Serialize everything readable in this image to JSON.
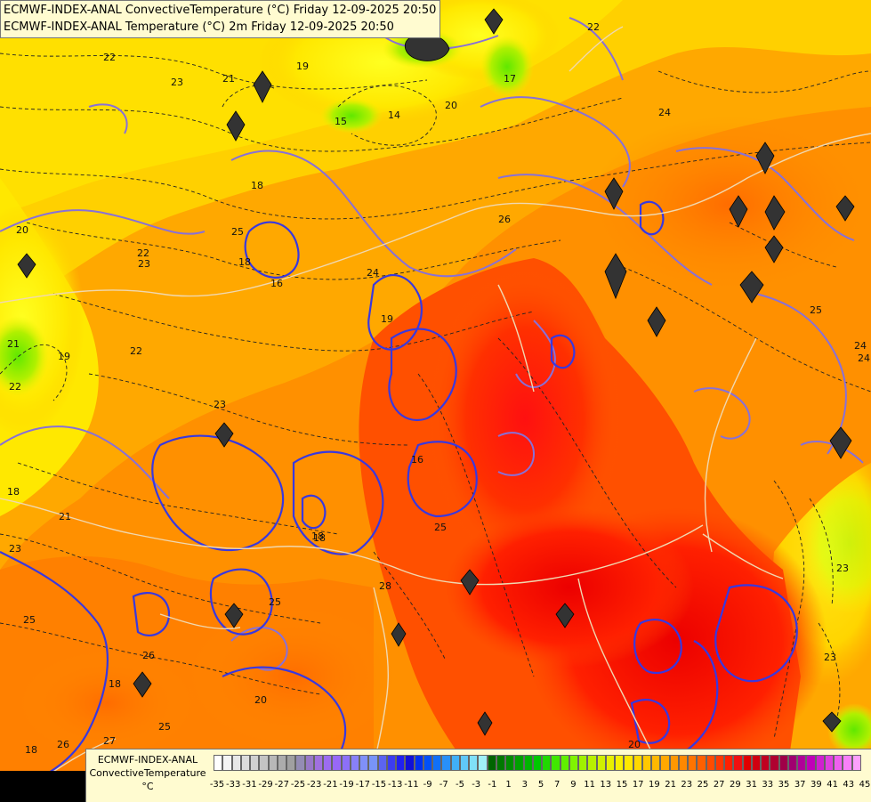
{
  "header": {
    "line1": "ECMWF-INDEX-ANAL ConvectiveTemperature (°C) Friday 12-09-2025 20:50",
    "line2": "ECMWF-INDEX-ANAL Temperature (°C) 2m Friday 12-09-2025 20:50"
  },
  "legend": {
    "source": "ECMWF-INDEX-ANAL",
    "parameter": "ConvectiveTemperature",
    "unit": "°C",
    "ticks": [
      "-35",
      "-33",
      "-31",
      "-29",
      "-27",
      "-25",
      "-23",
      "-21",
      "-19",
      "-17",
      "-15",
      "-13",
      "-11",
      "-9",
      "-7",
      "-5",
      "-3",
      "-1",
      "1",
      "3",
      "5",
      "7",
      "9",
      "11",
      "13",
      "15",
      "17",
      "19",
      "21",
      "23",
      "25",
      "27",
      "29",
      "31",
      "33",
      "35",
      "37",
      "39",
      "41",
      "43",
      "45"
    ],
    "colors": [
      "#ffffff",
      "#f4f4f4",
      "#e8e8e8",
      "#dcdcdc",
      "#d0d0d0",
      "#c4c4c4",
      "#b8b8b8",
      "#acacac",
      "#a0a0a0",
      "#948cb4",
      "#9878c8",
      "#a070e0",
      "#9c6cf0",
      "#9868f8",
      "#8c70f8",
      "#8880f8",
      "#8090f8",
      "#7894f8",
      "#5c64f0",
      "#3c3cf0",
      "#2020f0",
      "#1010d8",
      "#0030f0",
      "#0050f8",
      "#1070f8",
      "#2890f8",
      "#40b0f8",
      "#60c8f8",
      "#80e0f8",
      "#a0f0f8",
      "#006400",
      "#007800",
      "#008c00",
      "#00a000",
      "#00b400",
      "#00c800",
      "#20d800",
      "#40e800",
      "#60f000",
      "#80f400",
      "#a0f000",
      "#b8f000",
      "#d0f000",
      "#e8f000",
      "#f8f000",
      "#ffe800",
      "#ffd800",
      "#ffc800",
      "#ffb800",
      "#ffa800",
      "#ff9800",
      "#ff8800",
      "#ff7400",
      "#ff6000",
      "#ff4c00",
      "#ff3800",
      "#ff2000",
      "#f01010",
      "#e00000",
      "#d00010",
      "#c00020",
      "#b00030",
      "#a00048",
      "#a00070",
      "#b00098",
      "#c000b8",
      "#d020d0",
      "#e040e0",
      "#f060f0",
      "#f880f8",
      "#fca0fc"
    ]
  },
  "map": {
    "contour_labels": [
      "22",
      "23",
      "21",
      "19",
      "20",
      "15",
      "14",
      "17",
      "22",
      "24",
      "25",
      "26",
      "22",
      "23",
      "18",
      "20",
      "19",
      "21",
      "16",
      "23",
      "22",
      "24",
      "18",
      "25",
      "19",
      "18",
      "23",
      "16",
      "18",
      "24",
      "21",
      "18",
      "23",
      "25",
      "28",
      "22",
      "18",
      "20",
      "20",
      "18",
      "25",
      "24",
      "26",
      "23",
      "25",
      "25",
      "26",
      "27"
    ]
  }
}
